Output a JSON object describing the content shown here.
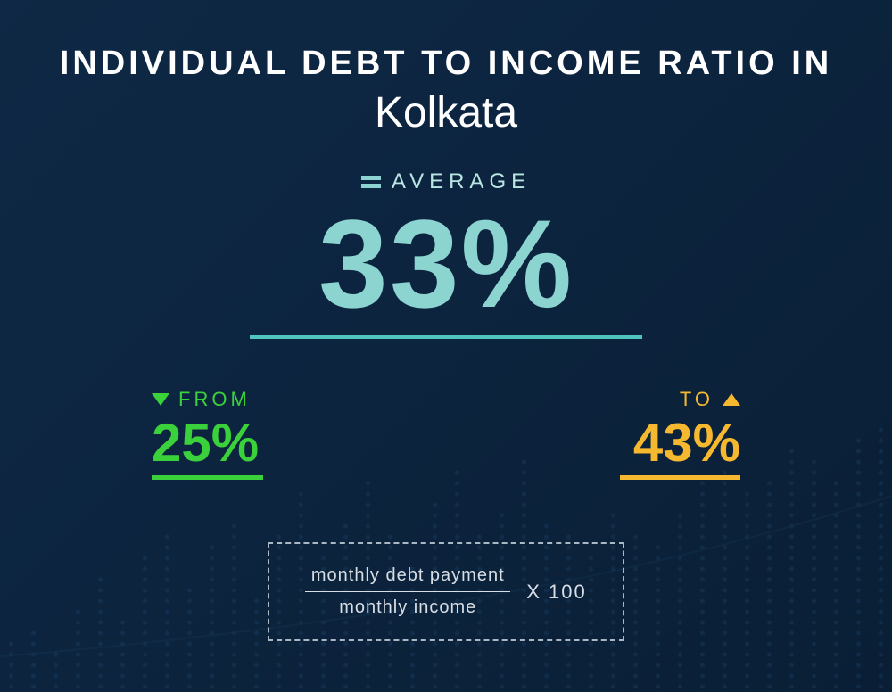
{
  "title": {
    "line1": "INDIVIDUAL  DEBT  TO  INCOME RATIO  IN",
    "line2": "Kolkata"
  },
  "average": {
    "label": "AVERAGE",
    "value": "33%",
    "value_color": "#8bd4d0",
    "underline_color": "#4fc5bd",
    "value_fontsize": 140
  },
  "range": {
    "from": {
      "label": "FROM",
      "value": "25%",
      "color": "#3bd13b",
      "arrow": "down"
    },
    "to": {
      "label": "TO",
      "value": "43%",
      "color": "#f5b82e",
      "arrow": "up"
    }
  },
  "formula": {
    "numerator": "monthly debt payment",
    "denominator": "monthly income",
    "multiplier": "X 100",
    "border_color": "#aab8c5"
  },
  "background": {
    "gradient_start": "#0e2845",
    "gradient_end": "#0a1f36",
    "bar_heights": [
      60,
      80,
      50,
      100,
      140,
      90,
      160,
      190,
      130,
      170,
      200,
      110,
      180,
      230,
      160,
      200,
      250,
      190,
      150,
      220,
      260,
      180,
      210,
      270,
      200,
      180,
      160,
      210,
      190,
      170,
      210,
      240,
      260,
      230,
      250,
      280,
      270,
      250,
      290,
      310
    ],
    "dot_color": "#2d6fa8"
  }
}
